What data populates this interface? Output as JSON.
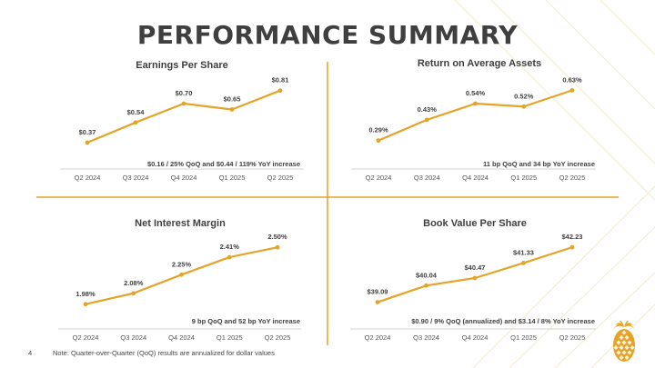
{
  "slide": {
    "title": "PERFORMANCE SUMMARY",
    "page_number": "4",
    "footnote": "Note: Quarter-over-Quarter (QoQ) results are annualized for dollar values"
  },
  "colors": {
    "line": "#e5a428",
    "divider": "#e5a428",
    "text": "#3f3f3f",
    "axis_line": "#d3d3d3",
    "decor_lines": "#f2ead2",
    "pineapple": "#e5a428"
  },
  "decor": {
    "logo_icon": "pineapple-icon"
  },
  "chart_data": [
    {
      "type": "line",
      "title": "Earnings Per Share",
      "categories": [
        "Q2 2024",
        "Q3 2024",
        "Q4 2024",
        "Q1 2025",
        "Q2 2025"
      ],
      "values": [
        0.37,
        0.54,
        0.7,
        0.65,
        0.81
      ],
      "data_labels": [
        "$0.37",
        "$0.54",
        "$0.70",
        "$0.65",
        "$0.81"
      ],
      "annotation": "$0.16 / 25% QoQ and $0.44 / 119% YoY increase",
      "ylim": [
        0.3,
        0.9
      ],
      "grid": false,
      "legend": "none"
    },
    {
      "type": "line",
      "title": "Return on Average Assets",
      "categories": [
        "Q2 2024",
        "Q3 2024",
        "Q4 2024",
        "Q1 2025",
        "Q2 2025"
      ],
      "values": [
        0.29,
        0.43,
        0.54,
        0.52,
        0.63
      ],
      "data_labels": [
        "0.29%",
        "0.43%",
        "0.54%",
        "0.52%",
        "0.63%"
      ],
      "annotation": "11 bp QoQ and 34 bp YoY increase",
      "ylim": [
        0.22,
        0.7
      ],
      "grid": false,
      "legend": "none"
    },
    {
      "type": "line",
      "title": "Net Interest Margin",
      "categories": [
        "Q2 2024",
        "Q3 2024",
        "Q4 2024",
        "Q1 2025",
        "Q2 2025"
      ],
      "values": [
        1.98,
        2.08,
        2.25,
        2.41,
        2.5
      ],
      "data_labels": [
        "1.98%",
        "2.08%",
        "2.25%",
        "2.41%",
        "2.50%"
      ],
      "annotation": "9 bp QoQ and 52 bp YoY increase",
      "ylim": [
        1.92,
        2.56
      ],
      "grid": false,
      "legend": "none"
    },
    {
      "type": "line",
      "title": "Book Value Per Share",
      "categories": [
        "Q2 2024",
        "Q3 2024",
        "Q4 2024",
        "Q1 2025",
        "Q2 2025"
      ],
      "values": [
        39.09,
        40.04,
        40.47,
        41.33,
        42.23
      ],
      "data_labels": [
        "$39.09",
        "$40.04",
        "$40.47",
        "$41.33",
        "$42.23"
      ],
      "annotation": "$0.90 / 9% QoQ (annualized) and $3.14 / 8% YoY increase",
      "ylim": [
        38.6,
        42.6
      ],
      "grid": false,
      "legend": "none"
    }
  ]
}
